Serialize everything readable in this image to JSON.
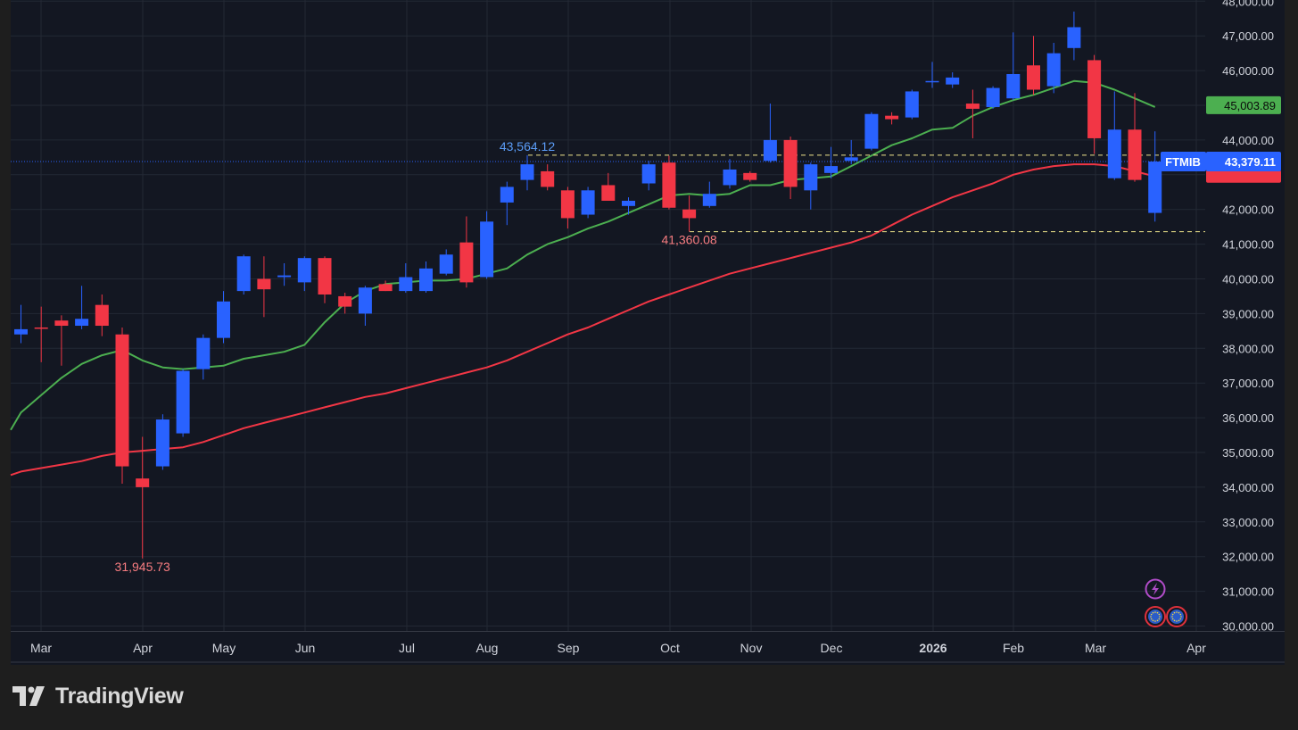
{
  "chart_data": {
    "type": "candlestick",
    "symbol": "FTMIB",
    "interval": "weekly",
    "y_axis": {
      "ticks": [
        30000,
        31000,
        32000,
        33000,
        34000,
        35000,
        36000,
        37000,
        38000,
        39000,
        40000,
        41000,
        42000,
        43000,
        44000,
        45000,
        46000,
        47000,
        48000
      ],
      "position": "right"
    },
    "x_axis": {
      "labels": [
        "Mar",
        "Apr",
        "May",
        "Jun",
        "Jul",
        "Aug",
        "Sep",
        "Oct",
        "Nov",
        "Dec",
        "2026",
        "Feb",
        "Mar",
        "Apr"
      ]
    },
    "grid": true,
    "candles": [
      {
        "o": 38400,
        "h": 39250,
        "l": 38150,
        "c": 38550
      },
      {
        "o": 38600,
        "h": 39200,
        "l": 37600,
        "c": 38580
      },
      {
        "o": 38800,
        "h": 38950,
        "l": 37500,
        "c": 38650
      },
      {
        "o": 38650,
        "h": 39800,
        "l": 38550,
        "c": 38850
      },
      {
        "o": 39250,
        "h": 39550,
        "l": 38350,
        "c": 38650
      },
      {
        "o": 38400,
        "h": 38600,
        "l": 34100,
        "c": 34600
      },
      {
        "o": 34250,
        "h": 35450,
        "l": 31945.73,
        "c": 34000
      },
      {
        "o": 34600,
        "h": 36100,
        "l": 34500,
        "c": 35950
      },
      {
        "o": 35550,
        "h": 37400,
        "l": 35450,
        "c": 37350
      },
      {
        "o": 37400,
        "h": 38400,
        "l": 37100,
        "c": 38300
      },
      {
        "o": 38300,
        "h": 39650,
        "l": 38150,
        "c": 39350
      },
      {
        "o": 39650,
        "h": 40700,
        "l": 39550,
        "c": 40650
      },
      {
        "o": 40000,
        "h": 40650,
        "l": 38900,
        "c": 39700
      },
      {
        "o": 40050,
        "h": 40450,
        "l": 39800,
        "c": 40100
      },
      {
        "o": 39900,
        "h": 40650,
        "l": 39650,
        "c": 40600
      },
      {
        "o": 40600,
        "h": 40650,
        "l": 39300,
        "c": 39550
      },
      {
        "o": 39500,
        "h": 39600,
        "l": 39000,
        "c": 39200
      },
      {
        "o": 39000,
        "h": 39800,
        "l": 38650,
        "c": 39750
      },
      {
        "o": 39850,
        "h": 39950,
        "l": 39650,
        "c": 39650
      },
      {
        "o": 39650,
        "h": 40450,
        "l": 39600,
        "c": 40050
      },
      {
        "o": 39650,
        "h": 40500,
        "l": 39600,
        "c": 40300
      },
      {
        "o": 40150,
        "h": 40850,
        "l": 40100,
        "c": 40700
      },
      {
        "o": 41050,
        "h": 41800,
        "l": 39750,
        "c": 39900
      },
      {
        "o": 40050,
        "h": 41950,
        "l": 40000,
        "c": 41650
      },
      {
        "o": 42200,
        "h": 42800,
        "l": 41550,
        "c": 42650
      },
      {
        "o": 42850,
        "h": 43564.12,
        "l": 42550,
        "c": 43300
      },
      {
        "o": 43100,
        "h": 43300,
        "l": 42550,
        "c": 42650
      },
      {
        "o": 42550,
        "h": 42650,
        "l": 41450,
        "c": 41750
      },
      {
        "o": 41850,
        "h": 42650,
        "l": 41750,
        "c": 42550
      },
      {
        "o": 42700,
        "h": 43050,
        "l": 42250,
        "c": 42250
      },
      {
        "o": 42100,
        "h": 42350,
        "l": 41850,
        "c": 42250
      },
      {
        "o": 42750,
        "h": 43400,
        "l": 42550,
        "c": 43300
      },
      {
        "o": 43350,
        "h": 43550,
        "l": 42000,
        "c": 42050
      },
      {
        "o": 42000,
        "h": 42400,
        "l": 41360.08,
        "c": 41750
      },
      {
        "o": 42100,
        "h": 42800,
        "l": 42050,
        "c": 42450
      },
      {
        "o": 42700,
        "h": 43450,
        "l": 42600,
        "c": 43150
      },
      {
        "o": 43050,
        "h": 43100,
        "l": 42800,
        "c": 42850
      },
      {
        "o": 43400,
        "h": 45050,
        "l": 43350,
        "c": 44000
      },
      {
        "o": 44000,
        "h": 44100,
        "l": 42300,
        "c": 42650
      },
      {
        "o": 42550,
        "h": 43350,
        "l": 42000,
        "c": 43300
      },
      {
        "o": 43050,
        "h": 43800,
        "l": 42900,
        "c": 43250
      },
      {
        "o": 43400,
        "h": 44000,
        "l": 43300,
        "c": 43500
      },
      {
        "o": 43750,
        "h": 44800,
        "l": 43700,
        "c": 44750
      },
      {
        "o": 44700,
        "h": 44800,
        "l": 44450,
        "c": 44600
      },
      {
        "o": 44650,
        "h": 45450,
        "l": 44600,
        "c": 45400
      },
      {
        "o": 45700,
        "h": 46250,
        "l": 45500,
        "c": 45700
      },
      {
        "o": 45600,
        "h": 45950,
        "l": 45500,
        "c": 45800
      },
      {
        "o": 45050,
        "h": 45450,
        "l": 44050,
        "c": 44900
      },
      {
        "o": 44950,
        "h": 45550,
        "l": 44900,
        "c": 45500
      },
      {
        "o": 45200,
        "h": 47100,
        "l": 45150,
        "c": 45900
      },
      {
        "o": 46150,
        "h": 47000,
        "l": 45300,
        "c": 45450
      },
      {
        "o": 45550,
        "h": 46800,
        "l": 45350,
        "c": 46500
      },
      {
        "o": 46650,
        "h": 47700,
        "l": 46300,
        "c": 47250
      },
      {
        "o": 46300,
        "h": 46450,
        "l": 43600,
        "c": 44050
      },
      {
        "o": 42900,
        "h": 45400,
        "l": 42850,
        "c": 44300
      },
      {
        "o": 44300,
        "h": 45350,
        "l": 42800,
        "c": 42850
      },
      {
        "o": 41900,
        "h": 44250,
        "l": 41650,
        "c": 43379.11
      }
    ],
    "series": [
      {
        "type": "line",
        "color": "#4caf50",
        "values": [
          36150,
          36650,
          37150,
          37550,
          37800,
          37950,
          37650,
          37450,
          37400,
          37450,
          37500,
          37700,
          37800,
          37900,
          38100,
          38750,
          39300,
          39650,
          39850,
          39900,
          39950,
          39950,
          40000,
          40150,
          40300,
          40700,
          41000,
          41200,
          41450,
          41650,
          41900,
          42150,
          42400,
          42450,
          42400,
          42450,
          42700,
          42700,
          42850,
          42900,
          42950,
          43250,
          43550,
          43850,
          44050,
          44300,
          44350,
          44700,
          44950,
          45150,
          45300,
          45500,
          45700,
          45650,
          45450,
          45200,
          44950
        ]
      },
      {
        "type": "line",
        "color": "#f23645",
        "values": [
          34450,
          34550,
          34650,
          34750,
          34900,
          35000,
          35050,
          35100,
          35150,
          35300,
          35500,
          35700,
          35850,
          36000,
          36150,
          36300,
          36450,
          36600,
          36700,
          36850,
          37000,
          37150,
          37300,
          37450,
          37650,
          37900,
          38150,
          38400,
          38600,
          38850,
          39100,
          39350,
          39550,
          39750,
          39950,
          40150,
          40300,
          40450,
          40600,
          40750,
          40900,
          41050,
          41250,
          41550,
          41850,
          42100,
          42350,
          42550,
          42750,
          43000,
          43150,
          43250,
          43300,
          43300,
          43250,
          43100,
          42950
        ]
      }
    ],
    "annotations": {
      "high_label": "43,564.12",
      "low_label": "41,360.08",
      "min_label": "31,945.73",
      "price_tag_green": "45,003.89",
      "price_tag_green_value": 45003.89,
      "price_tag_red_value": 42950,
      "last_price": "43,379.11",
      "last_price_value": 43379.11,
      "hline_high": 43564.12,
      "hline_low": 41360.08
    },
    "colors": {
      "up": "#2962ff",
      "down": "#f23645",
      "ma_fast": "#4caf50",
      "ma_slow": "#f23645",
      "bg": "#131722",
      "grid": "#232834"
    }
  },
  "branding": {
    "logo_text": "TradingView"
  }
}
